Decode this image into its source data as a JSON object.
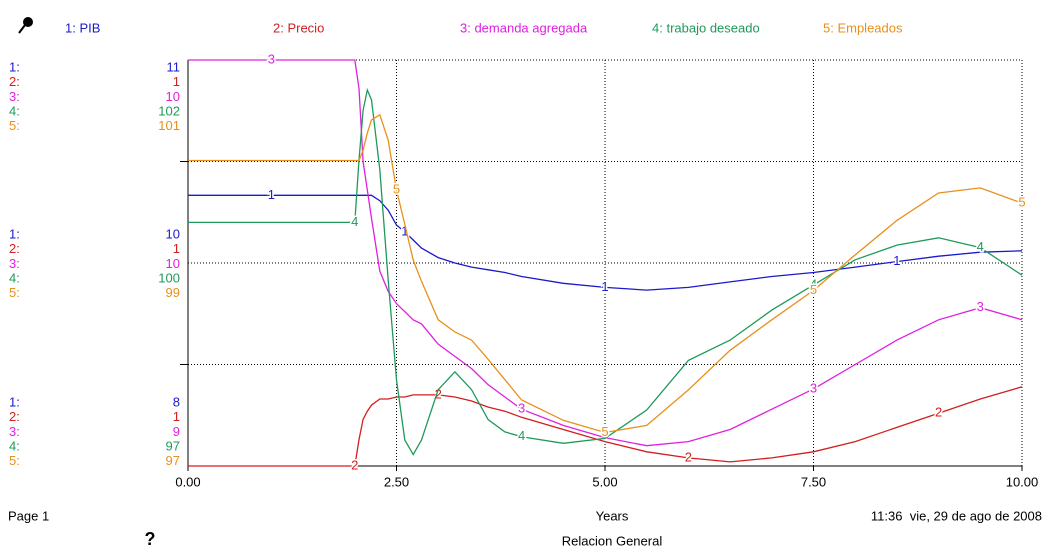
{
  "chart_data": {
    "type": "line",
    "title": "Relacion General",
    "x_label": "Years",
    "page_label": "Page 1",
    "timestamp": "11:36  vie, 29 de ago de 2008",
    "help_mark": "?",
    "xlim": [
      0,
      10
    ],
    "xticks": [
      {
        "value": 0,
        "label": "0.00"
      },
      {
        "value": 2.5,
        "label": "2.50"
      },
      {
        "value": 5,
        "label": "5.00"
      },
      {
        "value": 7.5,
        "label": "7.50"
      },
      {
        "value": 10,
        "label": "10.00"
      }
    ],
    "grid": true,
    "x": [
      0,
      1,
      2,
      2.05,
      2.1,
      2.15,
      2.2,
      2.3,
      2.4,
      2.5,
      2.6,
      2.7,
      2.8,
      3,
      3.2,
      3.4,
      3.6,
      3.8,
      4,
      4.5,
      5,
      5.5,
      6,
      6.5,
      7,
      7.5,
      8,
      8.5,
      9,
      9.5,
      10
    ],
    "series": [
      {
        "name": "1: PIB",
        "axis_key": "1:",
        "marker": "1",
        "color": "#1a1acc",
        "ylim": [
          8.4,
          11.4
        ],
        "yticks": [
          {
            "value": 11.4,
            "label": "11"
          },
          {
            "value": 9.9,
            "label": "10"
          },
          {
            "value": 8.4,
            "label": "8"
          }
        ],
        "values": [
          10.4,
          10.4,
          10.4,
          10.4,
          10.4,
          10.4,
          10.4,
          10.36,
          10.29,
          10.18,
          10.13,
          10.07,
          10.01,
          9.94,
          9.9,
          9.87,
          9.85,
          9.83,
          9.8,
          9.75,
          9.72,
          9.7,
          9.72,
          9.76,
          9.8,
          9.83,
          9.87,
          9.91,
          9.95,
          9.98,
          9.99
        ]
      },
      {
        "name": "2: Precio",
        "axis_key": "2:",
        "marker": "2",
        "color": "#d21e1e",
        "ylim": [
          0.9,
          1.1
        ],
        "yticks": [
          {
            "value": 1.1,
            "label": "1"
          },
          {
            "value": 1.0,
            "label": "1"
          },
          {
            "value": 0.9,
            "label": "1"
          }
        ],
        "values": [
          0.9,
          0.9,
          0.9,
          0.913,
          0.923,
          0.927,
          0.93,
          0.933,
          0.933,
          0.934,
          0.934,
          0.935,
          0.935,
          0.935,
          0.934,
          0.932,
          0.929,
          0.927,
          0.924,
          0.918,
          0.912,
          0.907,
          0.904,
          0.902,
          0.904,
          0.907,
          0.912,
          0.919,
          0.926,
          0.933,
          0.939
        ]
      },
      {
        "name": "3: demanda agregada",
        "axis_key": "3:",
        "marker": "3",
        "color": "#e020e0",
        "ylim": [
          9.4,
          10.4
        ],
        "yticks": [
          {
            "value": 10.4,
            "label": "10"
          },
          {
            "value": 9.9,
            "label": "10"
          },
          {
            "value": 9.4,
            "label": "9"
          }
        ],
        "values": [
          10.4,
          10.4,
          10.4,
          10.33,
          10.15,
          10.08,
          10.01,
          9.88,
          9.83,
          9.8,
          9.78,
          9.76,
          9.75,
          9.7,
          9.67,
          9.64,
          9.6,
          9.57,
          9.54,
          9.5,
          9.47,
          9.45,
          9.46,
          9.49,
          9.54,
          9.59,
          9.65,
          9.71,
          9.76,
          9.79,
          9.76
        ]
      },
      {
        "name": "4: trabajo deseado",
        "axis_key": "4:",
        "marker": "4",
        "color": "#1f9a5a",
        "ylim": [
          97.2,
          102.2
        ],
        "yticks": [
          {
            "value": 102.2,
            "label": "102"
          },
          {
            "value": 99.7,
            "label": "100"
          },
          {
            "value": 97.2,
            "label": "97"
          }
        ],
        "values": [
          100.2,
          100.2,
          100.2,
          100.97,
          101.58,
          101.83,
          101.71,
          100.85,
          99.49,
          98.26,
          97.52,
          97.34,
          97.52,
          98.14,
          98.36,
          98.14,
          97.77,
          97.62,
          97.56,
          97.48,
          97.54,
          97.89,
          98.5,
          98.75,
          99.12,
          99.43,
          99.74,
          99.92,
          100.01,
          99.89,
          99.55
        ]
      },
      {
        "name": "5: Empleados",
        "axis_key": "5:",
        "marker": "5",
        "color": "#e8901a",
        "ylim": [
          97,
          101
        ],
        "yticks": [
          {
            "value": 101,
            "label": "101"
          },
          {
            "value": 99,
            "label": "99"
          },
          {
            "value": 97,
            "label": "97"
          }
        ],
        "values": [
          100.01,
          100.01,
          100.01,
          100.01,
          100.11,
          100.28,
          100.41,
          100.46,
          100.21,
          99.72,
          99.38,
          99.03,
          98.82,
          98.44,
          98.32,
          98.24,
          98.05,
          97.85,
          97.65,
          97.45,
          97.33,
          97.4,
          97.75,
          98.14,
          98.44,
          98.73,
          99.08,
          99.42,
          99.69,
          99.74,
          99.59
        ]
      }
    ]
  }
}
